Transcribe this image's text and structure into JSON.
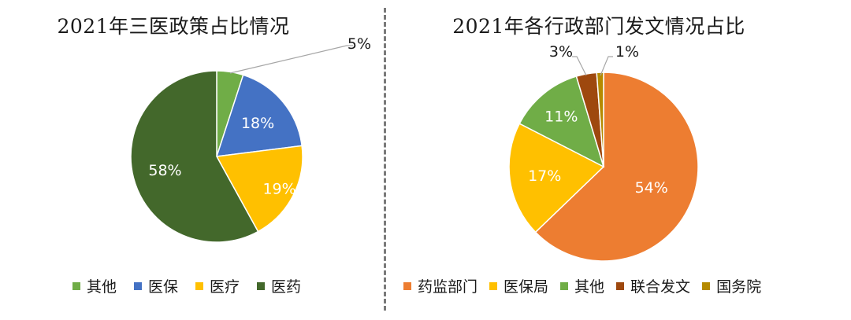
{
  "chart_data": [
    {
      "type": "pie",
      "title": "2021年三医政策占比情况",
      "slices": [
        {
          "label": "其他",
          "value": 5,
          "display": "5%",
          "color": "#70ad47"
        },
        {
          "label": "医保",
          "value": 18,
          "display": "18%",
          "color": "#4472c4"
        },
        {
          "label": "医疗",
          "value": 19,
          "display": "19%",
          "color": "#ffc000"
        },
        {
          "label": "医药",
          "value": 58,
          "display": "58%",
          "color": "#43682b"
        }
      ],
      "legend": [
        "其他",
        "医保",
        "医疗",
        "医药"
      ],
      "legend_position": "bottom"
    },
    {
      "type": "pie",
      "title": "2021年各行政部门发文情况占比",
      "slices": [
        {
          "label": "药监部门",
          "value": 54,
          "display": "54%",
          "color": "#ed7d31"
        },
        {
          "label": "医保局",
          "value": 17,
          "display": "17%",
          "color": "#ffc000"
        },
        {
          "label": "其他",
          "value": 11,
          "display": "11%",
          "color": "#70ad47"
        },
        {
          "label": "联合发文",
          "value": 3,
          "display": "3%",
          "color": "#9e480e"
        },
        {
          "label": "国务院",
          "value": 1,
          "display": "1%",
          "color": "#b58a00"
        }
      ],
      "legend": [
        "药监部门",
        "医保局",
        "其他",
        "联合发文",
        "国务院"
      ],
      "legend_position": "bottom"
    }
  ]
}
